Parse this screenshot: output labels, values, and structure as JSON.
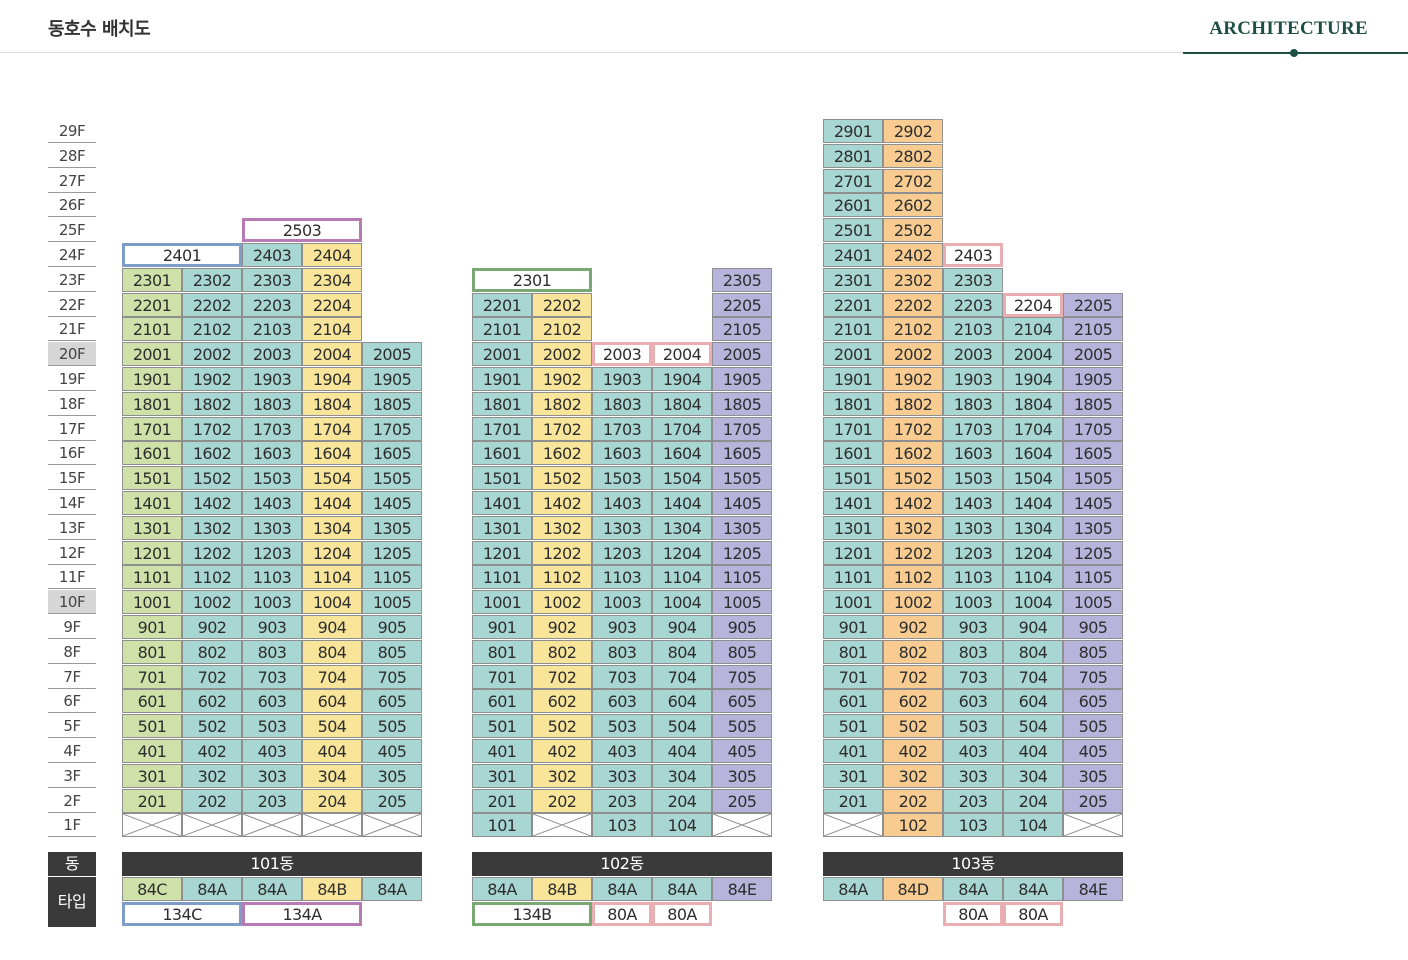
{
  "header": {
    "title": "동호수 배치도",
    "section": "ARCHITECTURE"
  },
  "floor_labels": [
    "29F",
    "28F",
    "27F",
    "26F",
    "25F",
    "24F",
    "23F",
    "22F",
    "21F",
    "20F",
    "19F",
    "18F",
    "17F",
    "16F",
    "15F",
    "14F",
    "13F",
    "12F",
    "11F",
    "10F",
    "9F",
    "8F",
    "7F",
    "6F",
    "5F",
    "4F",
    "3F",
    "2F",
    "1F"
  ],
  "highlighted_floors": [
    "20F",
    "10F"
  ],
  "legend_labels": {
    "dong": "동",
    "type": "타입"
  },
  "colors": {
    "green": "#cfe0a8",
    "teal": "#a8d6d2",
    "yellow": "#f8e59a",
    "purple": "#b7b4dc",
    "orange": "#f8cc91",
    "outline_blue": "#7d9cc7",
    "outline_magenta": "#b77bb3",
    "outline_green": "#7aa872",
    "outline_pink": "#e9aeb2",
    "header_accent": "#1e4f45",
    "dark_bar": "#3a3a3a"
  },
  "buildings": [
    {
      "name": "101동",
      "columns": [
        {
          "type": "84C",
          "color": "green",
          "top_floor": 23,
          "units_on_1f": false
        },
        {
          "type": "84A",
          "color": "teal",
          "top_floor": 23,
          "units_on_1f": false
        },
        {
          "type": "84A",
          "color": "teal",
          "top_floor": 24,
          "units_on_1f": false
        },
        {
          "type": "84B",
          "color": "yellow",
          "top_floor": 24,
          "units_on_1f": false
        },
        {
          "type": "84A",
          "color": "teal",
          "top_floor": 20,
          "units_on_1f": false
        }
      ],
      "penthouses": [
        {
          "label": "2401",
          "floor": 24,
          "span": [
            0,
            1
          ],
          "style": "outline-blue"
        },
        {
          "label": "2503",
          "floor": 25,
          "span": [
            2,
            3
          ],
          "style": "outline-magenta"
        }
      ],
      "special_types": [
        {
          "type": "134C",
          "span": [
            0,
            1
          ],
          "style": "outline-blue"
        },
        {
          "type": "134A",
          "span": [
            2,
            3
          ],
          "style": "outline-magenta"
        }
      ]
    },
    {
      "name": "102동",
      "columns": [
        {
          "type": "84A",
          "color": "teal",
          "top_floor": 22,
          "units_on_1f": true
        },
        {
          "type": "84B",
          "color": "yellow",
          "top_floor": 22,
          "units_on_1f": false
        },
        {
          "type": "84A",
          "color": "teal",
          "top_floor": 19,
          "units_on_1f": true
        },
        {
          "type": "84A",
          "color": "teal",
          "top_floor": 19,
          "units_on_1f": true
        },
        {
          "type": "84E",
          "color": "purple",
          "top_floor": 23,
          "units_on_1f": false
        }
      ],
      "penthouses": [
        {
          "label": "2301",
          "floor": 23,
          "span": [
            0,
            1
          ],
          "style": "outline-green"
        },
        {
          "label": "2003",
          "floor": 20,
          "span": [
            2,
            2
          ],
          "style": "outline-pink"
        },
        {
          "label": "2004",
          "floor": 20,
          "span": [
            3,
            3
          ],
          "style": "outline-pink"
        }
      ],
      "special_types": [
        {
          "type": "134B",
          "span": [
            0,
            1
          ],
          "style": "outline-green"
        },
        {
          "type": "80A",
          "span": [
            2,
            2
          ],
          "style": "outline-pink"
        },
        {
          "type": "80A",
          "span": [
            3,
            3
          ],
          "style": "outline-pink"
        }
      ]
    },
    {
      "name": "103동",
      "columns": [
        {
          "type": "84A",
          "color": "teal",
          "top_floor": 29,
          "units_on_1f": false
        },
        {
          "type": "84D",
          "color": "orange",
          "top_floor": 29,
          "units_on_1f": true
        },
        {
          "type": "84A",
          "color": "teal",
          "top_floor": 23,
          "units_on_1f": true
        },
        {
          "type": "84A",
          "color": "teal",
          "top_floor": 21,
          "units_on_1f": true
        },
        {
          "type": "84E",
          "color": "purple",
          "top_floor": 22,
          "units_on_1f": false
        }
      ],
      "penthouses": [
        {
          "label": "2403",
          "floor": 24,
          "span": [
            2,
            2
          ],
          "style": "outline-pink"
        },
        {
          "label": "2204",
          "floor": 22,
          "span": [
            3,
            3
          ],
          "style": "outline-pink"
        }
      ],
      "special_types": [
        {
          "type": "80A",
          "span": [
            2,
            2
          ],
          "style": "outline-pink"
        },
        {
          "type": "80A",
          "span": [
            3,
            3
          ],
          "style": "outline-pink"
        }
      ]
    }
  ]
}
